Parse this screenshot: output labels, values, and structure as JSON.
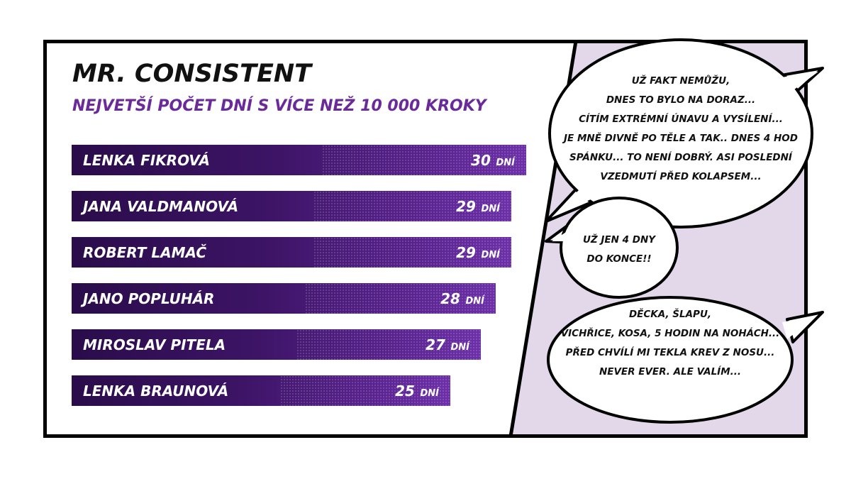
{
  "title": "MR. CONSISTENT",
  "subtitle": "NEJVETŠÍ POČET DNÍ S VÍCE NEŽ 10 000 KROKY",
  "chart_data": {
    "type": "bar",
    "orientation": "horizontal",
    "unit": "DNÍ",
    "categories": [
      "LENKA FIKROVÁ",
      "JANA VALDMANOVÁ",
      "ROBERT LAMAČ",
      "JANO POPLUHÁR",
      "MIROSLAV PITELA",
      "LENKA BRAUNOVÁ"
    ],
    "values": [
      30,
      29,
      29,
      28,
      27,
      25
    ],
    "grid": false,
    "legend": "none"
  },
  "bubbles": [
    {
      "lines": [
        "UŽ FAKT NEMŮŽU,",
        "DNES TO BYLO NA DORAZ...",
        "CÍTÍM EXTRÉMNÍ ÚNAVU A VYSÍLENÍ...",
        "JE MNĚ DIVNĚ PO TĚLE A TAK.. DNES 4 HOD",
        "SPÁNKU... TO NENÍ DOBRÝ. ASI POSLEDNÍ",
        "VZEDMUTÍ PŘED KOLAPSEM..."
      ]
    },
    {
      "lines": [
        "UŽ JEN 4 DNY",
        "DO KONCE!!"
      ]
    },
    {
      "lines": [
        "DĚCKA, ŠLAPU,",
        "VICHŘICE, KOSA, 5 HODIN NA NOHÁCH...",
        "PŘED CHVÍLÍ MI TEKLA KREV Z NOSU...",
        "NEVER EVER. ALE VALÍM..."
      ]
    }
  ],
  "colors": {
    "panel_background": "#e3d8e9",
    "subtitle": "#6a2a9a",
    "bar_dark": "#2a0c4a",
    "bar_light": "#6c2fa8",
    "frame": "#000000"
  }
}
